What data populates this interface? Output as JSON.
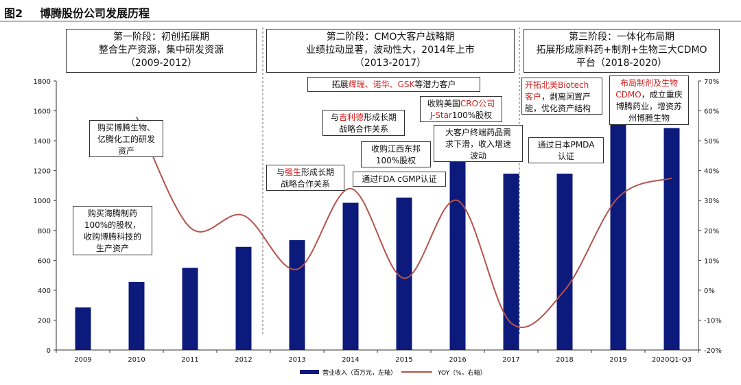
{
  "figure": {
    "number": "图2",
    "title": "博腾股份公司发展历程"
  },
  "phases": [
    {
      "line1": "第一阶段：初创拓展期",
      "line2": "整合生产资源，集中研发资源",
      "line3": "（2009-2012）"
    },
    {
      "line1": "第二阶段：CMO大客户战略期",
      "line2": "业绩拉动显著，波动性大，2014年上市",
      "line3": "（2013-2017）"
    },
    {
      "line1": "第三阶段：一体化布局期",
      "line2": "拓展形成原料药+制剂+生物三大CDMO",
      "line3": "平台（2018-2020）"
    }
  ],
  "annotations": {
    "a_biotech_acq": {
      "l1": "购买博腾生物、",
      "l2": "亿腾化工的研发",
      "l3": "资产"
    },
    "a_haiteng": {
      "l1": "购买海腾制药",
      "l2": "100%的股权，",
      "l3": "收购博腾科技的",
      "l4": "生产资产"
    },
    "a_gsk": {
      "pre": "拓展",
      "red": "辉瑞、诺华、GSK",
      "post": "等潜力客户"
    },
    "a_gilead": {
      "pre": "与",
      "red": "吉利德",
      "post": "形成长期",
      "l2": "战略合作关系"
    },
    "a_jstar": {
      "pre": "收购美国",
      "red1": "CRO公司",
      "red2": "J-Star",
      "post": "100%股权"
    },
    "a_jiangxi": {
      "l1": "收购江西东邦",
      "l2": "100%股权"
    },
    "a_demand": {
      "l1": "大客户终端药品需",
      "l2": "求下滑，收入增速",
      "l3": "波动"
    },
    "a_johnson": {
      "pre": "与",
      "red": "强生",
      "post": "形成长期",
      "l2": "战略合作关系"
    },
    "a_fda": {
      "text": "通过FDA cGMP认证"
    },
    "a_biotech_client": {
      "red1": "开拓北美Biotech",
      "red2": "客户",
      "post": "，剥离闲置产",
      "l3": "能，优化资产结构"
    },
    "a_pmda": {
      "l1": "通过日本PMDA",
      "l2": "认证"
    },
    "a_cdmo": {
      "red1": "布局制剂及生物",
      "red2": "CDMO",
      "post": "，成立重庆",
      "l3": "博腾药业，增资苏",
      "l4": "州博腾生物"
    }
  },
  "chart_data": {
    "type": "bar",
    "categories": [
      "2009",
      "2010",
      "2011",
      "2012",
      "2013",
      "2014",
      "2015",
      "2016",
      "2017",
      "2018",
      "2019",
      "2020Q1-Q3"
    ],
    "series": [
      {
        "name": "营业收入（百万元，左轴）",
        "type": "bar",
        "axis": "left",
        "color": "#0c1a7c",
        "values": [
          285,
          455,
          550,
          690,
          735,
          985,
          1020,
          1320,
          1180,
          1180,
          1550,
          1485
        ]
      },
      {
        "name": "YOY（%，右轴）",
        "type": "line",
        "axis": "right",
        "color": "#b5524a",
        "smooth": true,
        "values": [
          null,
          58,
          21,
          25,
          7,
          34,
          4,
          30,
          -11,
          0,
          31,
          37.5
        ]
      }
    ],
    "y_left": {
      "min": 0,
      "max": 1800,
      "ticks": [
        "0",
        "200",
        "400",
        "600",
        "800",
        "1000",
        "1200",
        "1400",
        "1600",
        "1800"
      ]
    },
    "y_right": {
      "min": -20,
      "max": 70,
      "ticks": [
        "-20%",
        "-10%",
        "0%",
        "10%",
        "20%",
        "30%",
        "40%",
        "50%",
        "60%",
        "70%"
      ]
    },
    "grid": false,
    "legend_position": "bottom"
  }
}
